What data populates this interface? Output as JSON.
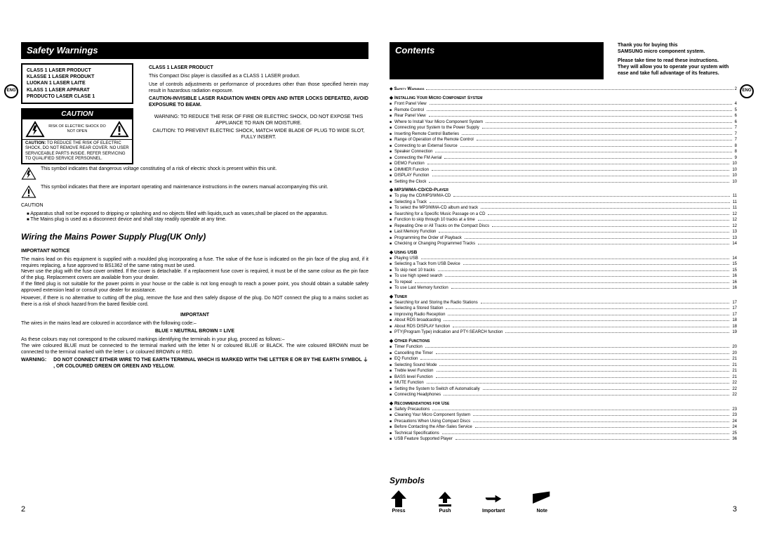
{
  "lang_badge": "ENG",
  "left": {
    "page_num": "2",
    "header1": "Safety Warnings",
    "laser_box": [
      "CLASS 1 LASER PRODUCT",
      "KLASSE 1 LASER PRODUKT",
      "LUOKAN 1 LASER LAITE",
      "KLASS 1 LASER APPARAT",
      "PRODUCTO LASER CLASE 1"
    ],
    "caution_title": "CAUTION",
    "caution_mid": "RISK OF ELECTRIC SHOCK DO NOT OPEN",
    "caution_sub_label": "CAUTION:",
    "caution_sub": "TO REDUCE THE RISK OF ELECTRIC SHOCK, DO NOT REMOVE REAR COVER. NO USER SERVICEABLE PARTS INSIDE. REFER SERVICING TO QUALIFIED SERVICE PERSONNEL.",
    "right_h1": "CLASS 1 LASER PRODUCT",
    "right_p1": "This Compact Disc player is classified as a CLASS 1 LASER product.",
    "right_p2": "Use of controls adjustments or performance of procedures other than those specified herein may result in hazardous radiation exposure.",
    "right_p3": "CAUTION-INVISIBLE LASER RADIATION WHEN OPEN AND INTER LOCKS DEFEATED, AVOID EXPOSURE TO BEAM.",
    "warn1": "WARNING: TO REDUCE THE RISK OF FIRE OR ELECTRIC SHOCK, DO NOT EXPOSE THIS APPLIANCE TO RAIN OR MOISTURE.",
    "warn2": "CAUTION: TO PREVENT ELECTRIC SHOCK, MATCH WIDE BLADE OF PLUG TO WIDE SLOT, FULLY INSERT.",
    "sym1": "This symbol indicates that dangerous voltage constituting of a risk of electric shock is present within this unit.",
    "sym2": "This symbol indicates that there are important operating and maintenance instructions in the owners manual accompanying this unit.",
    "caution_word": "CAUTION",
    "bul1": "Apparatus shall not be exposed to dripping or splashing and no objects filled with liquids,such as vases,shall be placed on the apparatus.",
    "bul2": "The Mains plug is used as a disconnect device and shall stay readily operable at any time.",
    "header2": "Wiring the Mains Power Supply Plug(UK Only)",
    "notice_h": "IMPORTANT NOTICE",
    "notice_p1": "The mains lead on this equipment is supplied with a moulded plug incorporating a fuse. The value of the fuse is indicated on the pin face of the plug and, if it requires replacing, a fuse approved to BS1362 of the same rating must be used.",
    "notice_p2": "Never use the plug with the fuse cover omitted. If the cover is detachable. If a replacement fuse cover is required, it must be of the same colour as the pin face of the plug. Replacement covers are available from your dealer.",
    "notice_p3": "If the fitted plug is not suitable for the power points in your house or the cable is not long enough to reach a power point, you should obtain a suitable safety approved extension lead or consult your dealer for assistance.",
    "notice_p4": "However, if there is no alternative to cutting off the plug, remove the fuse and then safely dispose of the plug. Do NOT connect the plug to a mains socket as there is a risk of shock hazard from the bared flexible cord.",
    "important_h": "IMPORTANT",
    "imp_p1": "The wires in the mains lead are coloured in accordance with the following code:–",
    "colors": "BLUE = NEUTRAL          BROWN = LIVE",
    "imp_p2": "As these colours may not correspond to the coloured markings identifying the terminals in your plug, proceed as follows:–",
    "imp_p3": "The wire coloured BLUE must be connected to the terminal marked with the letter N or coloured BLUE or BLACK. The wire coloured BROWN must be connected to the terminal marked with the letter L or coloured BROWN or RED.",
    "warn_final_label": "WARNING:",
    "warn_final": "DO NOT CONNECT EITHER WIRE TO THE EARTH TERMINAL WHICH IS MARKED WITH THE LETTER E OR BY THE EARTH SYMBOL ⏚ , OR COLOURED GREEN OR GREEN AND YELLOW."
  },
  "right": {
    "page_num": "3",
    "header": "Contents",
    "intro1": "Thank you for buying this",
    "intro2": "SAMSUNG micro component system.",
    "intro3": "Please take time to read these instructions.",
    "intro4": "They will allow you to operate your system with ease and take full advantage of its features.",
    "toc": [
      {
        "h": "Safety Warnings",
        "items": [
          {
            "t": "",
            "p": "2"
          }
        ]
      },
      {
        "h": "Installing Your Micro Component System",
        "items": [
          {
            "t": "Front Panel View",
            "p": "4"
          },
          {
            "t": "Remote Control",
            "p": "5"
          },
          {
            "t": "Rear Panel View",
            "p": "6"
          },
          {
            "t": "Where to Install Your Micro Component System",
            "p": "6"
          },
          {
            "t": "Connecting your System to the Power Supply",
            "p": "7"
          },
          {
            "t": "Inserting Remote Control Batteries",
            "p": "7"
          },
          {
            "t": "Range of Operation of the Remote Control",
            "p": "7"
          },
          {
            "t": "Connecting to an External Source",
            "p": "8"
          },
          {
            "t": "Speaker Connection",
            "p": "8"
          },
          {
            "t": "Connecting the FM Aerial",
            "p": "9"
          },
          {
            "t": "DEMO Function",
            "p": "10"
          },
          {
            "t": "DIMMER Function",
            "p": "10"
          },
          {
            "t": "DISPLAY Function",
            "p": "10"
          },
          {
            "t": "Setting the Clock",
            "p": "10"
          }
        ]
      },
      {
        "h": "MP3/WMA-CD/CD-Player",
        "items": [
          {
            "t": "To play the CD/MP3/WMA-CD",
            "p": "11"
          },
          {
            "t": "Selecting a Track",
            "p": "11"
          },
          {
            "t": "To select the MP3/WMA-CD album and track",
            "p": "11"
          },
          {
            "t": "Searching for a Specific Music Passage on a CD",
            "p": "12"
          },
          {
            "t": "Function to skip through 10 tracks at a time",
            "p": "12"
          },
          {
            "t": "Repeating One or All Tracks on the Compact Discs",
            "p": "12"
          },
          {
            "t": "Last Memory Function",
            "p": "13"
          },
          {
            "t": "Programming the Order of Playback",
            "p": "13"
          },
          {
            "t": "Checking or Changing Programmed Tracks",
            "p": "14"
          }
        ]
      },
      {
        "h": "Using USB",
        "items": [
          {
            "t": "Playing USB",
            "p": "14"
          },
          {
            "t": "Selecting a Track from USB Device",
            "p": "15"
          },
          {
            "t": "To skip next 10 tracks",
            "p": "15"
          },
          {
            "t": "To use high speed search",
            "p": "16"
          },
          {
            "t": "To repeat",
            "p": "16"
          },
          {
            "t": "To use Last Memory function",
            "p": "16"
          }
        ]
      },
      {
        "h": "Tuner",
        "items": [
          {
            "t": "Searching for and Storing the Radio Stations",
            "p": "17"
          },
          {
            "t": "Selecting a Stored Station",
            "p": "17"
          },
          {
            "t": "Improving Radio Reception",
            "p": "17"
          },
          {
            "t": "About RDS broadcasting",
            "p": "18"
          },
          {
            "t": "About RDS DISPLAY function",
            "p": "18"
          },
          {
            "t": "PTY(Program Type) indication and PTY-SEARCH function",
            "p": "19"
          }
        ]
      },
      {
        "h": "Other Functions",
        "items": [
          {
            "t": "Timer Function",
            "p": "20"
          },
          {
            "t": "Cancelling the Timer",
            "p": "20"
          },
          {
            "t": "EQ Function",
            "p": "21"
          },
          {
            "t": "Selecting Sound Mode",
            "p": "21"
          },
          {
            "t": "Treble level Function",
            "p": "21"
          },
          {
            "t": "BASS level Function",
            "p": "21"
          },
          {
            "t": "MUTE Function",
            "p": "22"
          },
          {
            "t": "Setting the System to Switch off Automatically",
            "p": "22"
          },
          {
            "t": "Connecting Headphones",
            "p": "22"
          }
        ]
      },
      {
        "h": "Recommendations for Use",
        "items": [
          {
            "t": "Safety Precautions",
            "p": "23"
          },
          {
            "t": "Cleaning Your Micro Component System",
            "p": "23"
          },
          {
            "t": "Precautions When Using Compact Discs",
            "p": "24"
          },
          {
            "t": "Before Contacting the After-Sales Service",
            "p": "24"
          },
          {
            "t": "Technical Specifications",
            "p": "25"
          },
          {
            "t": "USB  Feature Supported Player",
            "p": "36"
          }
        ]
      }
    ],
    "symbols_h": "Symbols",
    "symbols": [
      {
        "label": "Press"
      },
      {
        "label": "Push"
      },
      {
        "label": "Important"
      },
      {
        "label": "Note"
      }
    ]
  }
}
